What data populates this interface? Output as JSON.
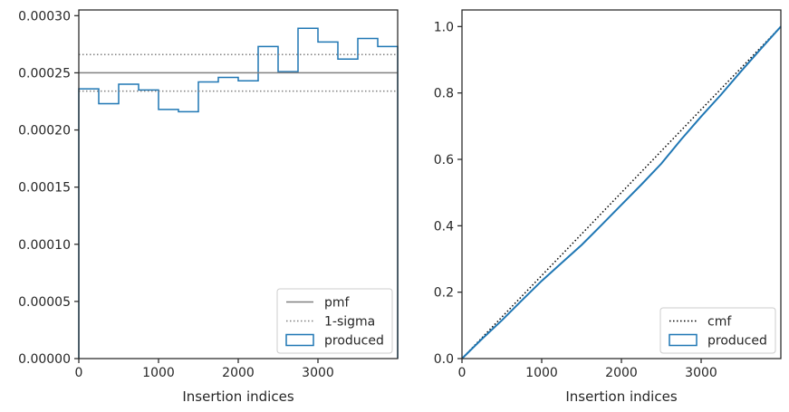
{
  "chart_data": [
    {
      "type": "step",
      "xlabel": "Insertion indices",
      "ylabel": "",
      "xlim": [
        0,
        4000
      ],
      "ylim": [
        0,
        0.000305
      ],
      "xticks": [
        0,
        1000,
        2000,
        3000
      ],
      "xtick_labels": [
        "0",
        "1000",
        "2000",
        "3000"
      ],
      "yticks": [
        0,
        5e-05,
        0.0001,
        0.00015,
        0.0002,
        0.00025,
        0.0003
      ],
      "ytick_labels": [
        "0.00000",
        "0.00005",
        "0.00010",
        "0.00015",
        "0.00020",
        "0.00025",
        "0.00030"
      ],
      "bin_edges": [
        0,
        250,
        500,
        750,
        1000,
        1250,
        1500,
        1750,
        2000,
        2250,
        2500,
        2750,
        3000,
        3250,
        3500,
        3750,
        4000
      ],
      "series": [
        {
          "name": "produced",
          "kind": "step-histogram",
          "color": "#1f77b4",
          "values": [
            0.000236,
            0.000223,
            0.00024,
            0.000235,
            0.000218,
            0.000216,
            0.000242,
            0.000246,
            0.000243,
            0.000273,
            0.000251,
            0.000289,
            0.000277,
            0.000262,
            0.00028,
            0.000273
          ]
        },
        {
          "name": "pmf",
          "kind": "hline",
          "color": "#808080",
          "value": 0.00025
        },
        {
          "name": "1-sigma",
          "kind": "hline-dotted",
          "color": "#808080",
          "values": [
            0.000266,
            0.000234
          ]
        }
      ],
      "legend": {
        "placement": "lower-right",
        "entries": [
          "pmf",
          "1-sigma",
          "produced"
        ]
      },
      "grid": false
    },
    {
      "type": "line",
      "xlabel": "Insertion indices",
      "ylabel": "",
      "xlim": [
        0,
        4000
      ],
      "ylim": [
        0,
        1.05
      ],
      "xticks": [
        0,
        1000,
        2000,
        3000
      ],
      "xtick_labels": [
        "0",
        "1000",
        "2000",
        "3000"
      ],
      "yticks": [
        0,
        0.2,
        0.4,
        0.6,
        0.8,
        1.0
      ],
      "ytick_labels": [
        "0.0",
        "0.2",
        "0.4",
        "0.6",
        "0.8",
        "1.0"
      ],
      "series": [
        {
          "name": "cmf",
          "kind": "dotted-line",
          "color": "#000000",
          "x": [
            0,
            4000
          ],
          "y": [
            0,
            1.0
          ]
        },
        {
          "name": "produced",
          "kind": "line",
          "color": "#1f77b4",
          "x": [
            0,
            250,
            500,
            750,
            1000,
            1250,
            1500,
            1750,
            2000,
            2250,
            2500,
            2750,
            3000,
            3250,
            3500,
            3750,
            4000
          ],
          "y": [
            0,
            0.059,
            0.115,
            0.175,
            0.234,
            0.288,
            0.342,
            0.402,
            0.463,
            0.524,
            0.587,
            0.66,
            0.729,
            0.795,
            0.865,
            0.933,
            1.0
          ]
        }
      ],
      "legend": {
        "placement": "lower-right",
        "entries": [
          "cmf",
          "produced"
        ]
      },
      "grid": false
    }
  ]
}
